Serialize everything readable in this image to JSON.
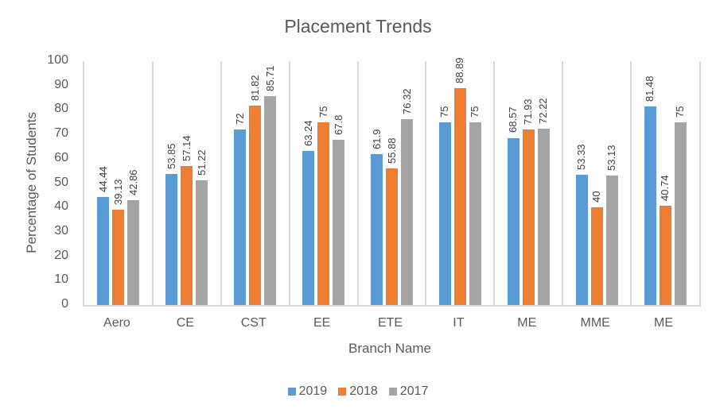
{
  "chart_data": {
    "type": "bar",
    "title": "Placement Trends",
    "xlabel": "Branch Name",
    "ylabel": "Percentage of Students",
    "ylim": [
      0,
      100
    ],
    "yticks": [
      0,
      10,
      20,
      30,
      40,
      50,
      60,
      70,
      80,
      90,
      100
    ],
    "grid": false,
    "legend_position": "bottom",
    "categories": [
      "Aero",
      "CE",
      "CST",
      "EE",
      "ETE",
      "IT",
      "ME",
      "MME",
      "ME"
    ],
    "series": [
      {
        "name": "2019",
        "color": "#5b9bd5",
        "values": [
          44.44,
          53.85,
          72,
          63.24,
          61.9,
          75,
          68.57,
          53.33,
          81.48
        ]
      },
      {
        "name": "2018",
        "color": "#ed7d31",
        "values": [
          39.13,
          57.14,
          81.82,
          75,
          55.88,
          88.89,
          71.93,
          40,
          40.74
        ]
      },
      {
        "name": "2017",
        "color": "#a5a5a5",
        "values": [
          42.86,
          51.22,
          85.71,
          67.8,
          76.32,
          75,
          72.22,
          53.13,
          75
        ]
      }
    ],
    "data_labels": true
  }
}
